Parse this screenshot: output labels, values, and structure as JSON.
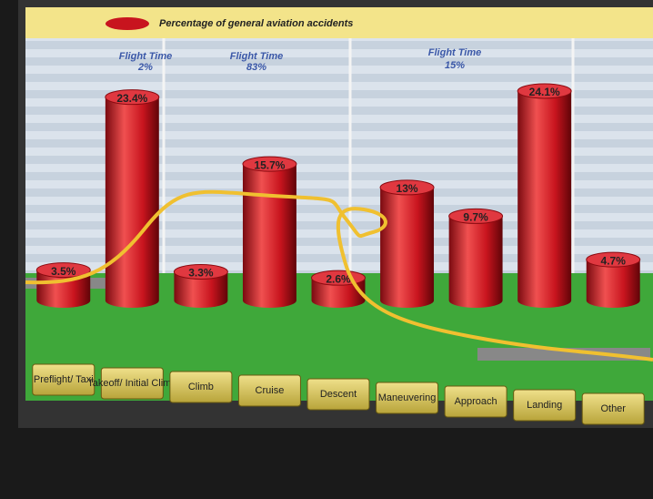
{
  "chart_data": {
    "type": "bar",
    "legend_label": "Percentage of general aviation accidents",
    "categories": [
      "Preflight/ Taxi",
      "Takeoff/ Initial Climb",
      "Climb",
      "Cruise",
      "Descent",
      "Maneuvering",
      "Approach",
      "Landing",
      "Other"
    ],
    "values": [
      3.5,
      23.4,
      3.3,
      15.7,
      2.6,
      13,
      9.7,
      24.1,
      4.7
    ],
    "value_labels": [
      "3.5%",
      "23.4%",
      "3.3%",
      "15.7%",
      "2.6%",
      "13%",
      "9.7%",
      "24.1%",
      "4.7%"
    ],
    "color": "#c8141e",
    "flight_time": [
      {
        "title": "Flight Time",
        "share": "2%"
      },
      {
        "title": "Flight Time",
        "share": "83%"
      },
      {
        "title": "Flight Time",
        "share": "15%"
      }
    ]
  }
}
